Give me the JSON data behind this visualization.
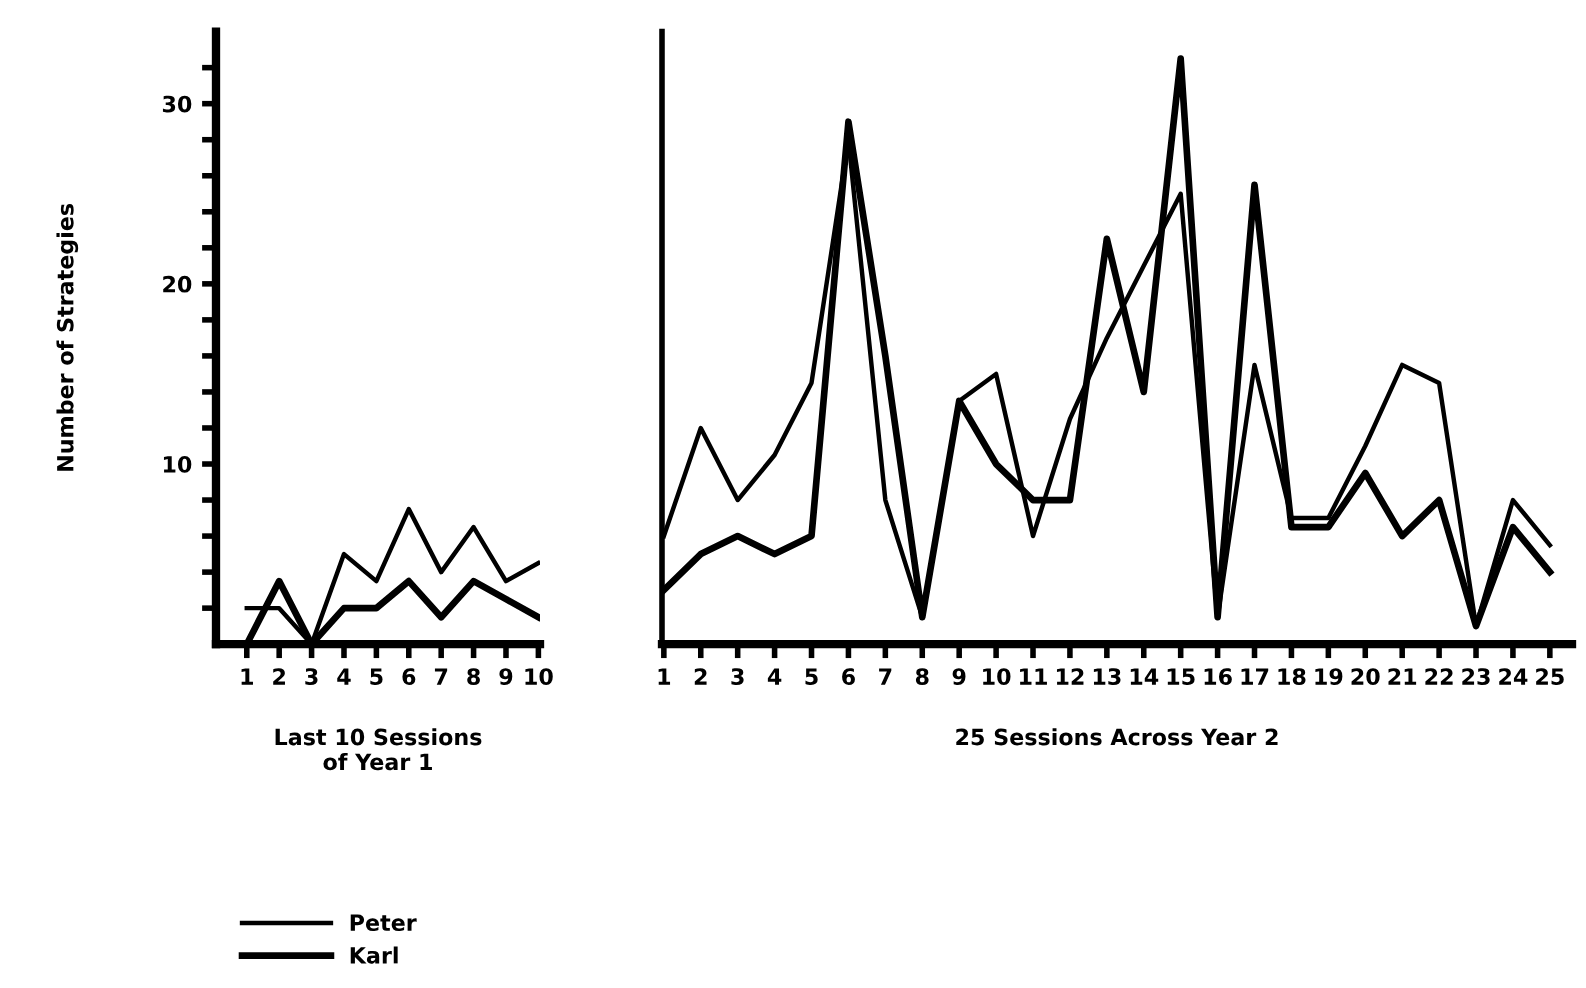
{
  "chart_data": [
    {
      "type": "line",
      "ylabel": "Number of Strategies",
      "xlabel": "Last 10 Sessions\nof Year 1",
      "categories": [
        "1",
        "2",
        "3",
        "4",
        "5",
        "6",
        "7",
        "8",
        "9",
        "10"
      ],
      "ylim": [
        0,
        34
      ],
      "yticks": [
        {
          "value": 2,
          "label": null
        },
        {
          "value": 4,
          "label": null
        },
        {
          "value": 6,
          "label": null
        },
        {
          "value": 8,
          "label": null
        },
        10,
        {
          "value": 12,
          "label": null
        },
        {
          "value": 14,
          "label": null
        },
        {
          "value": 16,
          "label": null
        },
        {
          "value": 18,
          "label": null
        },
        20,
        {
          "value": 22,
          "label": null
        },
        {
          "value": 24,
          "label": null
        },
        {
          "value": 26,
          "label": null
        },
        {
          "value": 28,
          "label": null
        },
        30,
        {
          "value": 32,
          "label": null
        }
      ],
      "series": [
        {
          "name": "Peter",
          "color": "#000000",
          "values": [
            2,
            2,
            0,
            5,
            3.5,
            7.5,
            4,
            6.5,
            3.5,
            4.5
          ]
        },
        {
          "name": "Karl",
          "color": "#000000",
          "values": [
            0,
            3.5,
            0,
            2,
            2,
            3.5,
            1.5,
            3.5,
            2.5,
            1.5
          ]
        }
      ],
      "grid": false,
      "legend": "bottom left",
      "marker": "none",
      "line_style": "solid"
    },
    {
      "type": "line",
      "xlabel": "25 Sessions Across Year 2",
      "categories": [
        "1",
        "2",
        "3",
        "4",
        "5",
        "6",
        "7",
        "8",
        "9",
        "10",
        "11",
        "12",
        "13",
        "14",
        "15",
        "16",
        "17",
        "18",
        "19",
        "20",
        "21",
        "22",
        "23",
        "24",
        "25"
      ],
      "ylim": [
        0,
        34
      ],
      "tick_labels": "x",
      "series": [
        {
          "name": "Peter",
          "color": "#000000",
          "values": [
            6,
            12,
            8,
            10.5,
            14.5,
            28,
            8,
            1.5,
            13.5,
            15,
            6,
            12.5,
            17,
            21,
            25,
            1.5,
            15.5,
            7,
            7,
            11,
            15.5,
            14.5,
            1,
            8,
            5.5
          ]
        },
        {
          "name": "Karl",
          "color": "#000000",
          "values": [
            3,
            5,
            6,
            5,
            6,
            29,
            16,
            1.5,
            13.5,
            10,
            8,
            8,
            22.5,
            14,
            32.5,
            1.5,
            25.5,
            6.5,
            6.5,
            9.5,
            6,
            8,
            1,
            6.5,
            4
          ]
        }
      ],
      "grid": false,
      "marker": "none",
      "line_style": "solid"
    }
  ]
}
